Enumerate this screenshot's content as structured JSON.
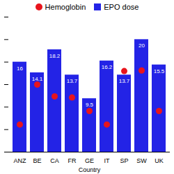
{
  "chart_data": {
    "type": "bar",
    "categories": [
      "ANZ",
      "BE",
      "CA",
      "FR",
      "GE",
      "IT",
      "SP",
      "SW",
      "UK"
    ],
    "series": [
      {
        "name": "Hemoglobin",
        "type": "scatter",
        "color": "#e8141c",
        "marker": "circle",
        "values": [
          4.9,
          12.0,
          9.9,
          9.7,
          7.3,
          4.9,
          14.4,
          14.5,
          7.3
        ]
      },
      {
        "name": "EPO dose",
        "type": "bar",
        "color": "#2323e6",
        "marker": "square",
        "values": [
          16,
          14.1,
          18.2,
          13.7,
          9.5,
          16.2,
          13.7,
          20,
          15.5
        ]
      }
    ],
    "x_label": "Country",
    "ylim": [
      0,
      24
    ],
    "yticks": [
      0,
      4,
      8,
      12,
      16,
      20,
      24
    ],
    "tick_labels": "x",
    "data_labels": true,
    "legend": "top",
    "grid": false
  }
}
